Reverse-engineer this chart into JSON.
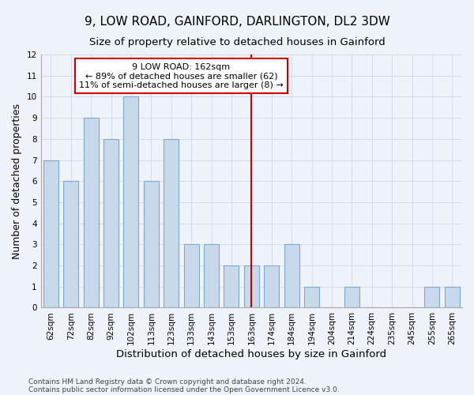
{
  "title": "9, LOW ROAD, GAINFORD, DARLINGTON, DL2 3DW",
  "subtitle": "Size of property relative to detached houses in Gainford",
  "xlabel": "Distribution of detached houses by size in Gainford",
  "ylabel": "Number of detached properties",
  "footer_line1": "Contains HM Land Registry data © Crown copyright and database right 2024.",
  "footer_line2": "Contains public sector information licensed under the Open Government Licence v3.0.",
  "bin_labels": [
    "62sqm",
    "72sqm",
    "82sqm",
    "92sqm",
    "102sqm",
    "113sqm",
    "123sqm",
    "133sqm",
    "143sqm",
    "153sqm",
    "163sqm",
    "174sqm",
    "184sqm",
    "194sqm",
    "204sqm",
    "214sqm",
    "224sqm",
    "235sqm",
    "245sqm",
    "255sqm",
    "265sqm"
  ],
  "bar_values": [
    7,
    6,
    9,
    8,
    10,
    6,
    8,
    3,
    3,
    2,
    2,
    2,
    3,
    1,
    0,
    1,
    0,
    0,
    0,
    1,
    1
  ],
  "bar_color": "#c9d9ec",
  "bar_edge_color": "#7ea8cc",
  "reference_line_x": 10,
  "reference_line_color": "#cc0000",
  "annotation_text": "9 LOW ROAD: 162sqm\n← 89% of detached houses are smaller (62)\n11% of semi-detached houses are larger (8) →",
  "annotation_box_color": "#ffffff",
  "annotation_box_edge_color": "#cc0000",
  "ylim": [
    0,
    12
  ],
  "yticks": [
    0,
    1,
    2,
    3,
    4,
    5,
    6,
    7,
    8,
    9,
    10,
    11,
    12
  ],
  "grid_color": "#d0d8e8",
  "background_color": "#eef2f9",
  "title_fontsize": 11,
  "subtitle_fontsize": 9.5,
  "ylabel_fontsize": 9,
  "xlabel_fontsize": 9.5,
  "tick_fontsize": 7.5,
  "annotation_fontsize": 8,
  "footer_fontsize": 6.5,
  "bar_width": 0.75
}
